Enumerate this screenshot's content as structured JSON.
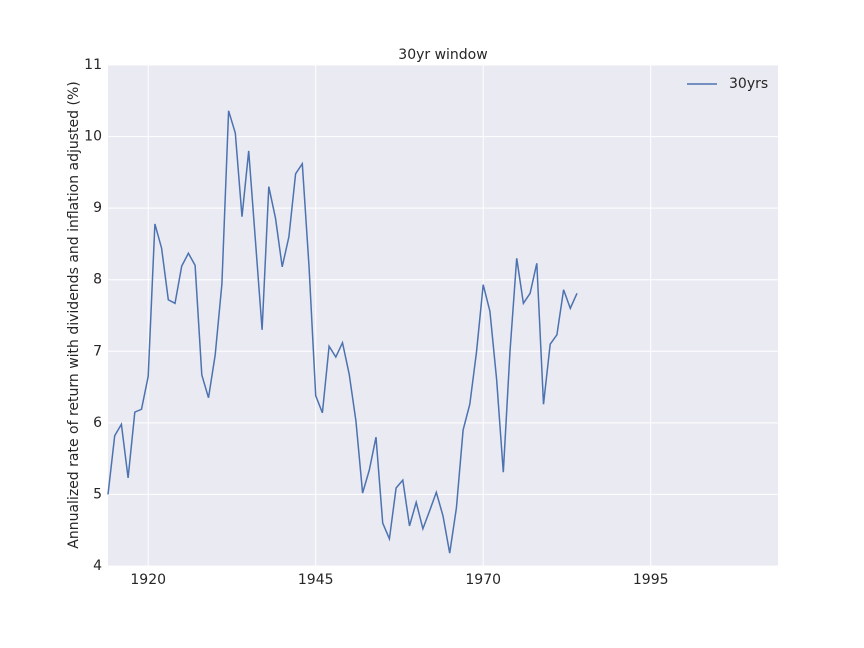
{
  "chart_data": {
    "type": "line",
    "title": "30yr window",
    "ylabel": "Annualized rate of return with dividends and inflation adjusted (%)",
    "x": [
      1914,
      1915,
      1916,
      1917,
      1918,
      1919,
      1920,
      1921,
      1922,
      1923,
      1924,
      1925,
      1926,
      1927,
      1928,
      1929,
      1930,
      1931,
      1932,
      1933,
      1934,
      1935,
      1936,
      1937,
      1938,
      1939,
      1940,
      1941,
      1942,
      1943,
      1944,
      1945,
      1946,
      1947,
      1948,
      1949,
      1950,
      1951,
      1952,
      1953,
      1954,
      1955,
      1956,
      1957,
      1958,
      1959,
      1960,
      1961,
      1962,
      1963,
      1964,
      1965,
      1966,
      1967,
      1968,
      1969,
      1970,
      1971,
      1972,
      1973,
      1974,
      1975,
      1976,
      1977,
      1978,
      1979,
      1980,
      1981,
      1982,
      1983,
      1984
    ],
    "series": [
      {
        "name": "30yrs",
        "color": "#4c72b0",
        "values": [
          5.0,
          5.82,
          5.98,
          5.23,
          6.15,
          6.19,
          6.65,
          8.78,
          8.44,
          7.72,
          7.67,
          8.19,
          8.37,
          8.2,
          6.67,
          6.35,
          6.95,
          7.94,
          10.36,
          10.05,
          8.88,
          9.8,
          8.55,
          7.3,
          9.3,
          8.86,
          8.18,
          8.6,
          9.48,
          9.62,
          8.19,
          6.38,
          6.14,
          7.07,
          6.92,
          7.12,
          6.68,
          6.03,
          5.02,
          5.34,
          5.8,
          4.6,
          4.38,
          5.09,
          5.2,
          4.56,
          4.89,
          4.52,
          4.77,
          5.03,
          4.7,
          4.18,
          4.81,
          5.9,
          6.26,
          6.99,
          7.93,
          7.56,
          6.61,
          5.31,
          7.0,
          8.3,
          7.67,
          7.81,
          8.23,
          6.26,
          7.1,
          7.23,
          7.86,
          7.6,
          7.81
        ]
      }
    ],
    "xlim": [
      1914,
      2014
    ],
    "xticks": [
      1920,
      1945,
      1970,
      1995
    ],
    "ylim": [
      4,
      11
    ],
    "yticks": [
      4,
      5,
      6,
      7,
      8,
      9,
      10,
      11
    ],
    "grid": true,
    "legend": "upper right"
  }
}
